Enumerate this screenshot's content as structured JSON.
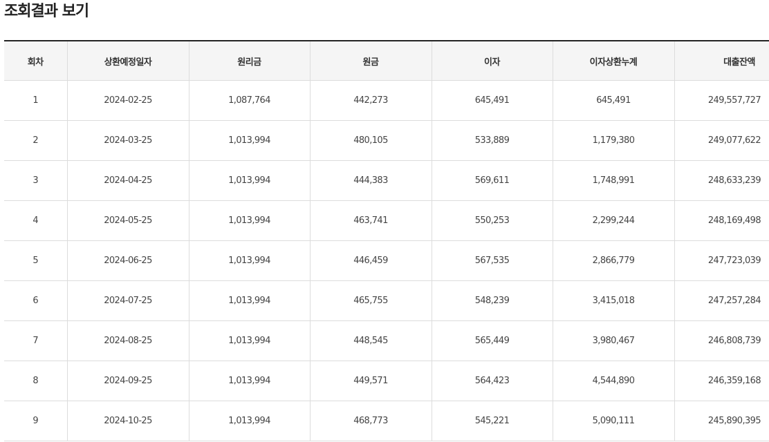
{
  "page": {
    "title": "조회결과 보기"
  },
  "table": {
    "headers": [
      "회차",
      "상환예정일자",
      "원리금",
      "원금",
      "이자",
      "이자상환누계",
      "대출잔액"
    ],
    "rows": [
      [
        "1",
        "2024-02-25",
        "1,087,764",
        "442,273",
        "645,491",
        "645,491",
        "249,557,727"
      ],
      [
        "2",
        "2024-03-25",
        "1,013,994",
        "480,105",
        "533,889",
        "1,179,380",
        "249,077,622"
      ],
      [
        "3",
        "2024-04-25",
        "1,013,994",
        "444,383",
        "569,611",
        "1,748,991",
        "248,633,239"
      ],
      [
        "4",
        "2024-05-25",
        "1,013,994",
        "463,741",
        "550,253",
        "2,299,244",
        "248,169,498"
      ],
      [
        "5",
        "2024-06-25",
        "1,013,994",
        "446,459",
        "567,535",
        "2,866,779",
        "247,723,039"
      ],
      [
        "6",
        "2024-07-25",
        "1,013,994",
        "465,755",
        "548,239",
        "3,415,018",
        "247,257,284"
      ],
      [
        "7",
        "2024-08-25",
        "1,013,994",
        "448,545",
        "565,449",
        "3,980,467",
        "246,808,739"
      ],
      [
        "8",
        "2024-09-25",
        "1,013,994",
        "449,571",
        "564,423",
        "4,544,890",
        "246,359,168"
      ],
      [
        "9",
        "2024-10-25",
        "1,013,994",
        "468,773",
        "545,221",
        "5,090,111",
        "245,890,395"
      ]
    ]
  }
}
